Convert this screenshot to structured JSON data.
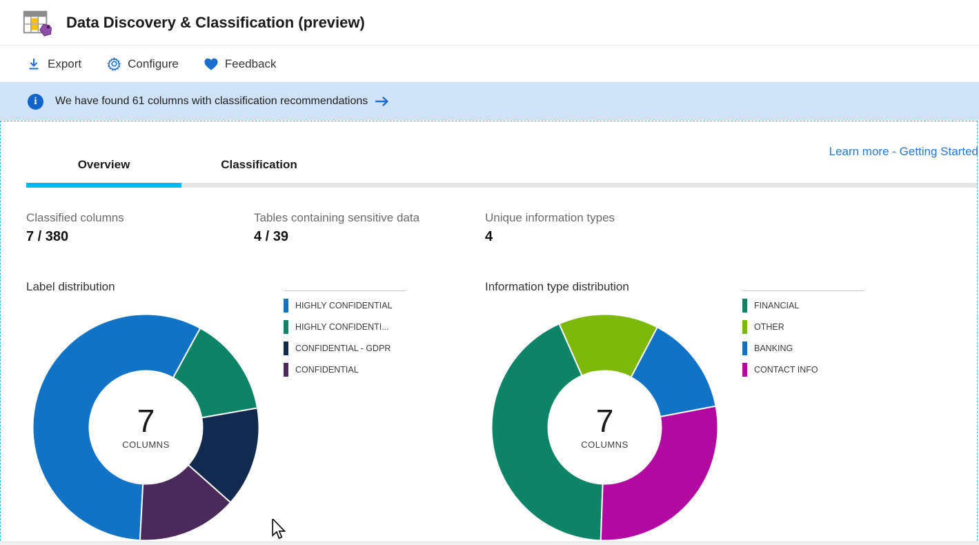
{
  "header": {
    "title": "Data Discovery & Classification (preview)"
  },
  "toolbar": {
    "items": [
      {
        "label": "Export",
        "icon": "download-icon"
      },
      {
        "label": "Configure",
        "icon": "gear-icon"
      },
      {
        "label": "Feedback",
        "icon": "heart-icon"
      }
    ]
  },
  "banner": {
    "icon": "info-icon",
    "text": "We have found 61 columns with classification recommendations",
    "arrow_icon": "arrow-right-icon"
  },
  "learn_more_link": "Learn more - Getting Started",
  "tabs": [
    {
      "label": "Overview",
      "active": true
    },
    {
      "label": "Classification",
      "active": false
    }
  ],
  "stats": [
    {
      "label": "Classified columns",
      "value": "7 / 380"
    },
    {
      "label": "Tables containing sensitive data",
      "value": "4 / 39"
    },
    {
      "label": "Unique information types",
      "value": "4"
    }
  ],
  "colors": {
    "accent_cyan": "#00b7f0",
    "link_blue": "#2477d4",
    "icon_blue": "#1b6ed0",
    "banner_bg": "#cfe2f8"
  },
  "chart_data": [
    {
      "type": "pie",
      "subtype": "donut",
      "title": "Label distribution",
      "center_value": "7",
      "center_label": "COLUMNS",
      "total": 7,
      "start_angle_deg": 183,
      "legend_position": "right",
      "slices": [
        {
          "label": "HIGHLY CONFIDENTIAL",
          "value": 4,
          "color": "#1173c5"
        },
        {
          "label": "HIGHLY CONFIDENTI...",
          "value": 1,
          "color": "#0e8466"
        },
        {
          "label": "CONFIDENTIAL - GDPR",
          "value": 1,
          "color": "#132a4f"
        },
        {
          "label": "CONFIDENTIAL",
          "value": 1,
          "color": "#4a2a5a"
        }
      ]
    },
    {
      "type": "pie",
      "subtype": "donut",
      "title": "Information type distribution",
      "center_value": "7",
      "center_label": "COLUMNS",
      "total": 7,
      "start_angle_deg": 182,
      "legend_position": "right",
      "slices": [
        {
          "label": "FINANCIAL",
          "value": 3,
          "color": "#0e8466"
        },
        {
          "label": "OTHER",
          "value": 1,
          "color": "#7eb80c"
        },
        {
          "label": "BANKING",
          "value": 1,
          "color": "#1173c5"
        },
        {
          "label": "CONTACT INFO",
          "value": 2,
          "color": "#b20aa0"
        }
      ]
    }
  ]
}
